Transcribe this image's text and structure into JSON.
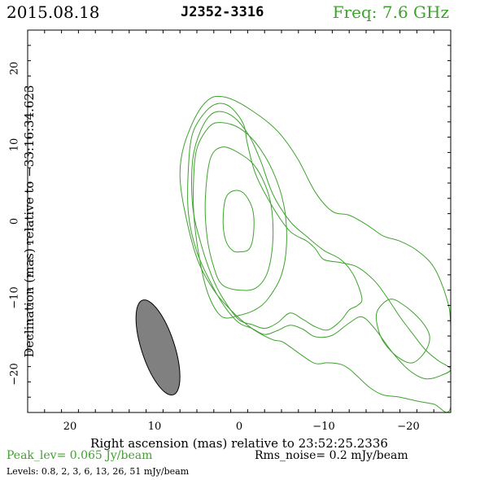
{
  "header": {
    "date": "2015.08.18",
    "source": "J2352-3316",
    "freq": "Freq: 7.6 GHz"
  },
  "footer": {
    "peak": "Peak_lev=  0.065 Jy/beam",
    "rms": "Rms_noise=   0.2 mJy/beam",
    "levels": "Levels: 0.8,   2,   3,   6,  13,  26,  51 mJy/beam"
  },
  "colors": {
    "contour": "#3fa22e",
    "beam_fill": "#808080",
    "axis": "#000000"
  },
  "chart_data": {
    "type": "contour",
    "xlabel": "Right ascension (mas) relative to 23:52:25.2336",
    "ylabel": "Declination (mas) relative to −33:16:34.623",
    "xlim": [
      25,
      -25
    ],
    "ylim": [
      -25,
      25
    ],
    "x_ticks": [
      20,
      10,
      0,
      -10,
      -20
    ],
    "x_tick_labels": [
      "20",
      "10",
      "0",
      "−10",
      "−20"
    ],
    "y_ticks": [
      20,
      10,
      0,
      -10,
      -20
    ],
    "y_tick_labels": [
      "20",
      "10",
      "0",
      "−10",
      "−20"
    ],
    "contour_levels_mJy": [
      0.8,
      2,
      3,
      6,
      13,
      26,
      51
    ],
    "peak_Jy_per_beam": 0.065,
    "rms_mJy_per_beam": 0.2,
    "beam": {
      "x": 9.6,
      "y": -16.5,
      "major": 13.0,
      "minor": 3.9,
      "pa_deg": 18
    },
    "contours": [
      {
        "level": 0.8,
        "points": [
          [
            -25,
            -24.3
          ],
          [
            -23,
            -23.9
          ],
          [
            -21,
            -23.5
          ],
          [
            -19,
            -23.0
          ],
          [
            -17,
            -22.7
          ],
          [
            -15.5,
            -21.8
          ],
          [
            -14,
            -20.3
          ],
          [
            -13,
            -19.3
          ],
          [
            -12,
            -18.7
          ],
          [
            -10.5,
            -18.5
          ],
          [
            -9,
            -18.6
          ],
          [
            -7.5,
            -17.6
          ],
          [
            -6,
            -16.4
          ],
          [
            -5,
            -15.7
          ],
          [
            -4,
            -15.5
          ],
          [
            -2.5,
            -14.7
          ],
          [
            -1,
            -13.6
          ],
          [
            1,
            -11.6
          ],
          [
            3,
            -9.0
          ],
          [
            5,
            -4.8
          ],
          [
            6.5,
            1.7
          ],
          [
            7,
            6.2
          ],
          [
            6.5,
            10.0
          ],
          [
            5,
            14.0
          ],
          [
            3.5,
            16.0
          ],
          [
            2,
            16.3
          ],
          [
            0,
            15.5
          ],
          [
            -3,
            13.3
          ],
          [
            -5,
            11.2
          ],
          [
            -7,
            8.0
          ],
          [
            -9,
            3.8
          ],
          [
            -11,
            1.3
          ],
          [
            -13,
            0.8
          ],
          [
            -15,
            -0.4
          ],
          [
            -17,
            -1.9
          ],
          [
            -19,
            -2.6
          ],
          [
            -21,
            -3.8
          ],
          [
            -23,
            -6.0
          ],
          [
            -24.5,
            -10.0
          ],
          [
            -25,
            -13.7
          ]
        ]
      },
      {
        "level": 2,
        "points": [
          [
            -25,
            -19.3
          ],
          [
            -23.5,
            -18.2
          ],
          [
            -22,
            -16.8
          ],
          [
            -20.5,
            -14.7
          ],
          [
            -19,
            -12.5
          ],
          [
            -17.5,
            -10.0
          ],
          [
            -16,
            -7.8
          ],
          [
            -14,
            -6.0
          ],
          [
            -12,
            -5.4
          ],
          [
            -10,
            -5.0
          ],
          [
            -9,
            -3.6
          ],
          [
            -8,
            -2.6
          ],
          [
            -6,
            -1.3
          ],
          [
            -4,
            1.8
          ],
          [
            -2,
            6.0
          ],
          [
            -1,
            10.0
          ],
          [
            -0.5,
            12.7
          ],
          [
            1,
            14.9
          ],
          [
            2.5,
            15.4
          ],
          [
            4,
            14.3
          ],
          [
            5.5,
            11.5
          ],
          [
            6,
            7.0
          ],
          [
            6,
            1.0
          ],
          [
            5,
            -4.0
          ],
          [
            3,
            -8.8
          ],
          [
            1.5,
            -11.5
          ],
          [
            0,
            -13.3
          ],
          [
            -1.5,
            -14.0
          ],
          [
            -3,
            -14.8
          ],
          [
            -4.5,
            -14.3
          ],
          [
            -6,
            -13.6
          ],
          [
            -7.5,
            -14.1
          ],
          [
            -9,
            -15.1
          ],
          [
            -11,
            -14.9
          ],
          [
            -13,
            -13.3
          ],
          [
            -14.5,
            -12.5
          ],
          [
            -16,
            -14.0
          ],
          [
            -18,
            -17.0
          ],
          [
            -20,
            -19.4
          ],
          [
            -22,
            -20.6
          ],
          [
            -24,
            -20.1
          ]
        ]
      },
      {
        "level": 3,
        "points": [
          [
            0,
            -12.9
          ],
          [
            -1.5,
            -13.5
          ],
          [
            -3,
            -14.0
          ],
          [
            -4.5,
            -13.3
          ],
          [
            -6,
            -12.0
          ],
          [
            -7.5,
            -12.8
          ],
          [
            -9,
            -13.8
          ],
          [
            -10.5,
            -14.2
          ],
          [
            -12,
            -13.0
          ],
          [
            -13,
            -11.6
          ],
          [
            -14,
            -11.0
          ],
          [
            -14.5,
            -10.0
          ],
          [
            -13.5,
            -7.0
          ],
          [
            -12,
            -5.0
          ],
          [
            -10,
            -3.8
          ],
          [
            -8,
            -2.0
          ],
          [
            -6,
            0.0
          ],
          [
            -4,
            3.5
          ],
          [
            -2.5,
            8.0
          ],
          [
            -1,
            11.5
          ],
          [
            1,
            13.9
          ],
          [
            3,
            14.2
          ],
          [
            4.5,
            12.0
          ],
          [
            5.5,
            8.0
          ],
          [
            5.5,
            2.0
          ],
          [
            4.5,
            -3.0
          ],
          [
            3,
            -7.8
          ],
          [
            1.5,
            -10.8
          ]
        ]
      },
      {
        "level": 6,
        "points": [
          [
            -20.5,
            -18.5
          ],
          [
            -22,
            -17.0
          ],
          [
            -22.5,
            -15.0
          ],
          [
            -21.5,
            -13.0
          ],
          [
            -19.5,
            -11.0
          ],
          [
            -17.8,
            -10.2
          ],
          [
            -16.3,
            -11.8
          ],
          [
            -16.4,
            -14.0
          ],
          [
            -17.2,
            -16.0
          ],
          [
            -18.8,
            -17.8
          ]
        ]
      },
      {
        "level": 13,
        "points": [
          [
            2,
            -12.5
          ],
          [
            0,
            -12.3
          ],
          [
            -2,
            -11.5
          ],
          [
            -3.5,
            -10.0
          ],
          [
            -5,
            -7.0
          ],
          [
            -5.6,
            -3.0
          ],
          [
            -5.3,
            2.0
          ],
          [
            -4,
            6.5
          ],
          [
            -2,
            10.2
          ],
          [
            0,
            12.2
          ],
          [
            2,
            12.9
          ],
          [
            3.5,
            12.4
          ],
          [
            5,
            9.5
          ],
          [
            5.4,
            5.0
          ],
          [
            5.3,
            0.0
          ],
          [
            4.5,
            -6.0
          ],
          [
            3.5,
            -10.0
          ]
        ]
      },
      {
        "level": 26,
        "points": [
          [
            0,
            -9.0
          ],
          [
            -2,
            -8.7
          ],
          [
            -3.4,
            -6.5
          ],
          [
            -4.0,
            -2.0
          ],
          [
            -3.6,
            3.0
          ],
          [
            -2,
            7.0
          ],
          [
            0,
            8.9
          ],
          [
            2,
            9.7
          ],
          [
            3.4,
            8.2
          ],
          [
            4,
            3.0
          ],
          [
            3.8,
            -2.0
          ],
          [
            3,
            -6.0
          ],
          [
            2,
            -8.3
          ]
        ]
      },
      {
        "level": 51,
        "points": [
          [
            0,
            -4.0
          ],
          [
            -1.2,
            -3.6
          ],
          [
            -1.7,
            -1.5
          ],
          [
            -1.6,
            1.5
          ],
          [
            -0.6,
            3.6
          ],
          [
            0.6,
            4.0
          ],
          [
            1.6,
            3.0
          ],
          [
            1.9,
            0.0
          ],
          [
            1.6,
            -2.5
          ],
          [
            0.8,
            -3.8
          ]
        ]
      }
    ]
  }
}
